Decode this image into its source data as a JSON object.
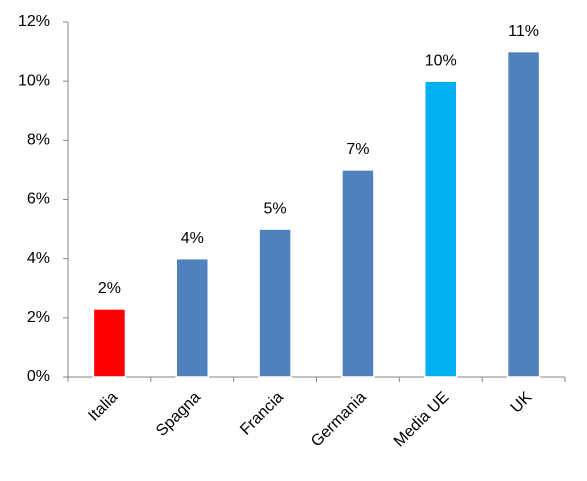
{
  "chart_data": {
    "type": "bar",
    "categories": [
      "Italia",
      "Spagna",
      "Francia",
      "Germania",
      "Media UE",
      "UK"
    ],
    "values": [
      2.3,
      4,
      5,
      7,
      10,
      11
    ],
    "value_labels": [
      "2%",
      "4%",
      "5%",
      "7%",
      "10%",
      "11%"
    ],
    "colors": [
      "#ff0000",
      "#4f81bd",
      "#4f81bd",
      "#4f81bd",
      "#00b0f0",
      "#4f81bd"
    ],
    "ylim": [
      0,
      12
    ],
    "yticks": [
      {
        "value": 0,
        "label": "0%"
      },
      {
        "value": 2,
        "label": "2%"
      },
      {
        "value": 4,
        "label": "4%"
      },
      {
        "value": 6,
        "label": "6%"
      },
      {
        "value": 8,
        "label": "8%"
      },
      {
        "value": 10,
        "label": "10%"
      },
      {
        "value": 12,
        "label": "12%"
      }
    ],
    "grid": false
  }
}
